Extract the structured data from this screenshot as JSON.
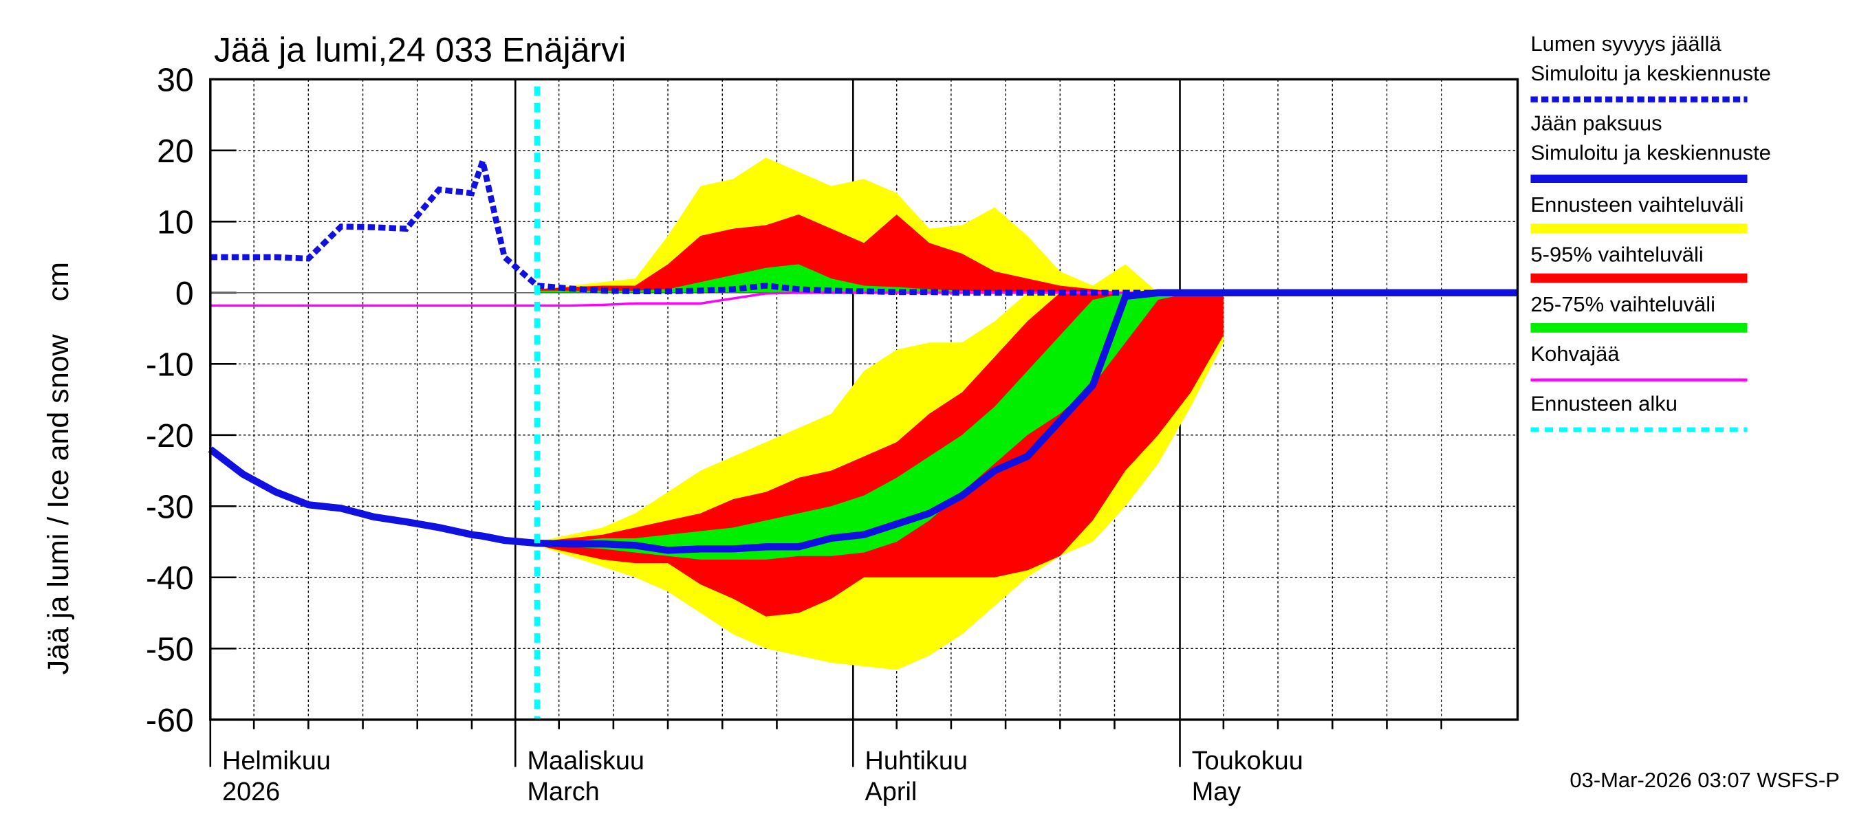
{
  "chart_data": {
    "type": "ice-snow",
    "title": "Jää ja lumi,24 033 Enäjärvi",
    "y_label": "Jää ja lumi / Ice and snow    cm",
    "footer": "03-Mar-2026 03:07 WSFS-P",
    "x": [
      32,
      35,
      38,
      41,
      44,
      47,
      50,
      53,
      56,
      57,
      59,
      62,
      65,
      68,
      71,
      74,
      77,
      80,
      83,
      86,
      89,
      92,
      95,
      98,
      101,
      104,
      107,
      110,
      113,
      116,
      119,
      122,
      125,
      128,
      131,
      134,
      137,
      140,
      143,
      146,
      149,
      152
    ],
    "xlim": [
      32,
      152
    ],
    "xticks": [
      {
        "value": 32,
        "label": [
          "Helmikuu",
          "2026"
        ]
      },
      {
        "value": 60,
        "label": [
          "Maaliskuu",
          "March"
        ]
      },
      {
        "value": 91,
        "label": [
          "Huhtikuu",
          "April"
        ]
      },
      {
        "value": 121,
        "label": [
          "Toukokuu",
          "May"
        ]
      }
    ],
    "x_minor_ticks": [
      36,
      41,
      46,
      51,
      56,
      64,
      69,
      74,
      79,
      84,
      95,
      100,
      105,
      110,
      115,
      125,
      130,
      135,
      140,
      145
    ],
    "ylim": [
      -60,
      30
    ],
    "yticks": [
      -60,
      -50,
      -40,
      -30,
      -20,
      -10,
      0,
      10,
      20,
      30
    ],
    "grid": true,
    "series": [
      {
        "name": "Lumen syvyys jäällä",
        "name2": "Simuloitu ja keskiennuste",
        "color": "#1010e0",
        "style": "dashed",
        "values": [
          5,
          5,
          5,
          4.8,
          9.3,
          9.2,
          9,
          14.5,
          14,
          18.5,
          5,
          1,
          0.6,
          0.3,
          0.2,
          0.2,
          0.3,
          0.5,
          1,
          0.5,
          0.3,
          0.2,
          0.1,
          0.1,
          0,
          0,
          0,
          0,
          0,
          0,
          0,
          0,
          0,
          0,
          0,
          0,
          0,
          0,
          0,
          0,
          0,
          0
        ]
      },
      {
        "name": "Jään paksuus",
        "name2": "Simuloitu ja keskiennuste",
        "color": "#1010e0",
        "style": "solid",
        "values": [
          -22,
          -25.5,
          -28,
          -29.8,
          -30.3,
          -31.5,
          -32.2,
          -33,
          -34,
          -34.2,
          -34.8,
          -35.2,
          -35.3,
          -35.3,
          -35.5,
          -36.2,
          -36,
          -36,
          -35.7,
          -35.7,
          -34.5,
          -34,
          -32.5,
          -31,
          -28.5,
          -25,
          -23,
          -18,
          -13,
          -0.5,
          0,
          0,
          0,
          0,
          0,
          0,
          0,
          0,
          0,
          0,
          0,
          0
        ]
      },
      {
        "name": "Kohvajää",
        "color": "#ff00ff",
        "style": "thin",
        "values": [
          -1.8,
          -1.8,
          -1.8,
          -1.8,
          -1.8,
          -1.8,
          -1.8,
          -1.8,
          -1.8,
          -1.8,
          -1.8,
          -1.8,
          -1.8,
          -1.7,
          -1.5,
          -1.5,
          -1.5,
          -0.8,
          -0.1,
          0,
          0,
          0,
          0,
          0,
          0,
          0,
          0,
          0,
          0,
          0,
          0,
          0,
          0,
          0,
          0,
          0,
          0,
          0,
          0,
          0,
          0,
          0
        ]
      }
    ],
    "bands": [
      {
        "name": "Ennusteen vaihteluväli",
        "color": "#ffff00",
        "ice_high": [
          null,
          null,
          null,
          null,
          null,
          null,
          null,
          null,
          null,
          null,
          null,
          -35,
          -34,
          -33,
          -31,
          -28,
          -25,
          -23,
          -21,
          -19,
          -17,
          -11,
          -8,
          -7,
          -7,
          -4,
          0,
          0,
          0,
          0,
          0,
          0,
          0,
          null,
          null,
          null,
          null,
          null,
          null,
          null,
          null,
          null
        ],
        "ice_low": [
          null,
          null,
          null,
          null,
          null,
          null,
          null,
          null,
          null,
          null,
          null,
          -35.5,
          -37,
          -38.5,
          -40,
          -42,
          -45,
          -48,
          -50,
          -51,
          -52,
          -52.5,
          -53,
          -51,
          -48,
          -44,
          -40,
          -37,
          -35,
          -30,
          -24,
          -16,
          -7,
          null,
          null,
          null,
          null,
          null,
          null,
          null,
          null,
          null
        ],
        "snow_high": [
          null,
          null,
          null,
          null,
          null,
          null,
          null,
          null,
          null,
          null,
          null,
          0.5,
          1,
          1.5,
          2,
          8,
          15,
          16,
          19,
          17,
          15,
          16,
          14,
          9,
          9.5,
          12,
          8,
          3,
          1,
          4,
          0,
          0,
          0,
          null,
          null,
          null,
          null,
          null,
          null,
          null,
          null,
          null
        ]
      },
      {
        "name": "5-95% vaihteluväli",
        "color": "#ff0000",
        "ice_high": [
          null,
          null,
          null,
          null,
          null,
          null,
          null,
          null,
          null,
          null,
          null,
          -35,
          -34.5,
          -34,
          -33,
          -32,
          -31,
          -29,
          -28,
          -26,
          -25,
          -23,
          -21,
          -17,
          -14,
          -9,
          -4,
          0,
          0,
          0,
          0,
          0,
          0,
          null,
          null,
          null,
          null,
          null,
          null,
          null,
          null,
          null
        ],
        "ice_low": [
          null,
          null,
          null,
          null,
          null,
          null,
          null,
          null,
          null,
          null,
          null,
          -35.5,
          -36.5,
          -37.5,
          -38,
          -38,
          -41,
          -43,
          -45.5,
          -45,
          -43,
          -40,
          -40,
          -40,
          -40,
          -40,
          -39,
          -37,
          -32,
          -25,
          -20,
          -14,
          -6,
          null,
          null,
          null,
          null,
          null,
          null,
          null,
          null,
          null
        ],
        "snow_high": [
          null,
          null,
          null,
          null,
          null,
          null,
          null,
          null,
          null,
          null,
          null,
          0.5,
          0.8,
          1,
          1,
          4,
          8,
          9,
          9.5,
          11,
          9,
          7,
          11,
          7,
          5.5,
          3,
          2,
          1,
          0.5,
          0,
          0,
          0,
          0,
          null,
          null,
          null,
          null,
          null,
          null,
          null,
          null,
          null
        ]
      },
      {
        "name": "25-75% vaihteluväli",
        "color": "#00ee00",
        "ice_high": [
          null,
          null,
          null,
          null,
          null,
          null,
          null,
          null,
          null,
          null,
          null,
          -35,
          -35,
          -34.5,
          -34.5,
          -34,
          -33.5,
          -33,
          -32,
          -31,
          -30,
          -28.5,
          -26,
          -23,
          -20,
          -16,
          -11,
          -6,
          -1,
          0,
          0,
          0,
          0,
          null,
          null,
          null,
          null,
          null,
          null,
          null,
          null,
          null
        ],
        "ice_low": [
          null,
          null,
          null,
          null,
          null,
          null,
          null,
          null,
          null,
          null,
          null,
          -35.5,
          -35.7,
          -36,
          -36.5,
          -37,
          -37.5,
          -37.5,
          -37.5,
          -37,
          -37,
          -36.5,
          -35,
          -32,
          -28,
          -24,
          -20,
          -17,
          -13,
          -7,
          -1,
          0,
          0,
          null,
          null,
          null,
          null,
          null,
          null,
          null,
          null,
          null
        ],
        "snow_high": [
          null,
          null,
          null,
          null,
          null,
          null,
          null,
          null,
          null,
          null,
          null,
          0.3,
          0.3,
          0.3,
          0.3,
          0.5,
          1.5,
          2.5,
          3.5,
          4,
          2,
          1,
          0.8,
          0.5,
          0.3,
          0.2,
          0.1,
          0,
          0,
          0,
          0,
          0,
          0,
          null,
          null,
          null,
          null,
          null,
          null,
          null,
          null,
          null
        ]
      }
    ],
    "forecast_start": {
      "name": "Ennusteen alku",
      "x": 62,
      "color": "#00ffff"
    }
  }
}
